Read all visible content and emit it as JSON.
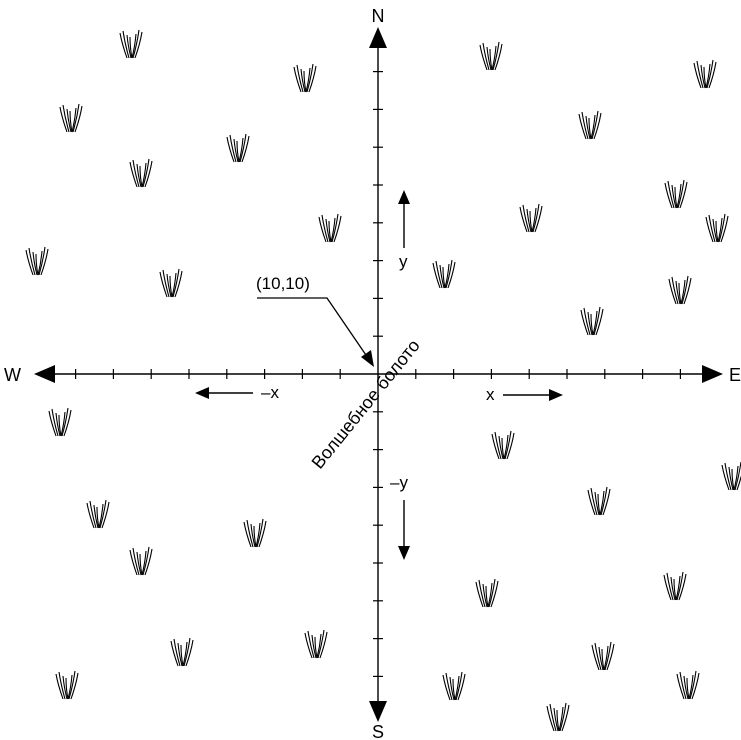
{
  "compass": {
    "north": "N",
    "south": "S",
    "east": "E",
    "west": "W"
  },
  "arrow_labels": {
    "pos_x": "x",
    "neg_x": "–x",
    "pos_y": "y",
    "neg_y": "–y"
  },
  "point_label": "(10,10)",
  "swamp_label": "Волшебное болото",
  "icons": {
    "grass": "grass-tuft-icon",
    "arrow": "arrow-head-icon"
  },
  "colors": {
    "ink": "#000000",
    "background": "#ffffff"
  }
}
